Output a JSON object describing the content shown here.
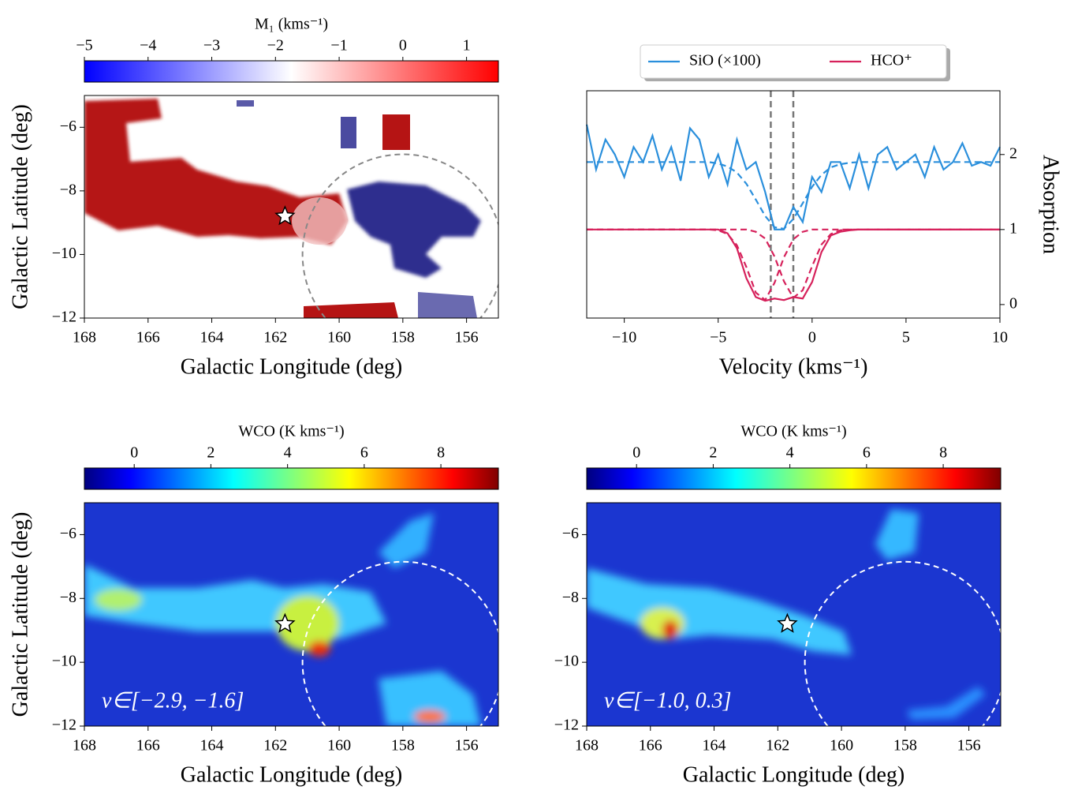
{
  "chart_data": [
    {
      "type": "map",
      "colormap": "bwr",
      "colorbar_label": "M₁ (kms⁻¹)",
      "colorbar_lim": [
        -5,
        1.5
      ],
      "colorbar_ticks": [
        {
          "value": -5,
          "label": "−5"
        },
        {
          "value": -4,
          "label": "−4"
        },
        {
          "value": -3,
          "label": "−3"
        },
        {
          "value": -2,
          "label": "−2"
        },
        {
          "value": -1,
          "label": "−1"
        },
        0,
        1
      ],
      "xlabel": "Galactic Longitude (deg)",
      "ylabel": "Galactic Latitude (deg)",
      "xlim": [
        168,
        155
      ],
      "ylim": [
        -12,
        -5
      ],
      "xticks": [
        168,
        166,
        164,
        162,
        160,
        158,
        156
      ],
      "yticks": [
        {
          "value": -6,
          "label": "−6"
        },
        {
          "value": -8,
          "label": "−8"
        },
        {
          "value": -10,
          "label": "−10"
        },
        {
          "value": -12,
          "label": "−12"
        }
      ],
      "star": {
        "lon": 161.7,
        "lat": -8.8
      },
      "circle": {
        "center": [
          158,
          -10
        ],
        "radius": 3.15,
        "color": "#888888"
      }
    },
    {
      "type": "line",
      "xlabel": "Velocity (kms⁻¹)",
      "ylabel": "Absorption",
      "legend": "upper center",
      "xlim": [
        -12,
        10
      ],
      "ylim": [
        -0.18,
        2.85
      ],
      "xticks": [
        {
          "value": -10,
          "label": "−10"
        },
        {
          "value": -5,
          "label": "−5"
        },
        0,
        5,
        10
      ],
      "yticks": [
        0,
        1,
        2
      ],
      "vlines": [
        -2.2,
        -1.0
      ],
      "x": [
        -12,
        -11.5,
        -11,
        -10.5,
        -10,
        -9.5,
        -9,
        -8.5,
        -8,
        -7.5,
        -7,
        -6.5,
        -6,
        -5.5,
        -5,
        -4.5,
        -4,
        -3.5,
        -3,
        -2.5,
        -2,
        -1.5,
        -1,
        -0.5,
        0,
        0.5,
        1,
        1.5,
        2,
        2.5,
        3,
        3.5,
        4,
        4.5,
        5,
        5.5,
        6,
        6.5,
        7,
        7.5,
        8,
        8.5,
        9,
        9.5,
        10
      ],
      "series": [
        {
          "name": "SiO (×100)",
          "color": "#2a8fdc",
          "values": [
            2.4,
            1.8,
            2.2,
            2.0,
            1.7,
            2.1,
            1.9,
            2.25,
            1.8,
            2.1,
            1.65,
            2.35,
            2.2,
            1.7,
            2.0,
            1.6,
            2.2,
            1.8,
            1.9,
            1.5,
            1.0,
            1.0,
            1.3,
            1.1,
            1.7,
            1.5,
            1.9,
            1.9,
            1.55,
            2.0,
            1.55,
            2.0,
            2.1,
            1.8,
            1.9,
            2.0,
            1.7,
            2.1,
            1.8,
            1.9,
            2.15,
            1.85,
            1.9,
            1.85,
            2.1
          ]
        },
        {
          "color": "#2a8fdc",
          "dashed": true,
          "values": [
            1.9,
            1.9,
            1.9,
            1.9,
            1.9,
            1.9,
            1.9,
            1.9,
            1.9,
            1.9,
            1.9,
            1.9,
            1.9,
            1.9,
            1.88,
            1.84,
            1.76,
            1.61,
            1.4,
            1.18,
            1.03,
            1.01,
            1.14,
            1.35,
            1.57,
            1.73,
            1.83,
            1.87,
            1.89,
            1.9,
            1.9,
            1.9,
            1.9,
            1.9,
            1.9,
            1.9,
            1.9,
            1.9,
            1.9,
            1.9,
            1.9,
            1.9,
            1.9,
            1.9,
            1.9
          ]
        },
        {
          "name": "HCO⁺",
          "color": "#d6215b",
          "values": [
            1,
            1,
            1,
            1,
            1,
            1,
            1,
            1,
            1,
            1,
            1,
            1,
            1,
            1,
            1,
            0.95,
            0.75,
            0.35,
            0.1,
            0.05,
            0.08,
            0.06,
            0.1,
            0.08,
            0.3,
            0.7,
            0.92,
            0.97,
            0.99,
            1,
            1,
            1,
            1,
            1,
            1,
            1,
            1,
            1,
            1,
            1,
            1,
            1,
            1,
            1,
            1
          ]
        },
        {
          "color": "#d6215b",
          "dashed": true,
          "values": [
            1,
            1,
            1,
            1,
            1,
            1,
            1,
            1,
            1,
            1,
            1,
            1,
            1,
            1,
            0.99,
            0.94,
            0.79,
            0.5,
            0.16,
            0.06,
            0.29,
            0.63,
            0.87,
            0.97,
            1,
            1,
            1,
            1,
            1,
            1,
            1,
            1,
            1,
            1,
            1,
            1,
            1,
            1,
            1,
            1,
            1,
            1,
            1,
            1,
            1
          ]
        },
        {
          "color": "#d6215b",
          "dashed": true,
          "values": [
            1,
            1,
            1,
            1,
            1,
            1,
            1,
            1,
            1,
            1,
            1,
            1,
            1,
            1,
            1,
            1,
            1,
            1,
            0.97,
            0.88,
            0.64,
            0.31,
            0.09,
            0.19,
            0.51,
            0.8,
            0.94,
            0.99,
            1,
            1,
            1,
            1,
            1,
            1,
            1,
            1,
            1,
            1,
            1,
            1,
            1,
            1,
            1,
            1,
            1
          ]
        }
      ]
    },
    {
      "type": "map",
      "colormap": "jet",
      "colorbar_label": "WCO (K kms⁻¹)",
      "colorbar_lim": [
        -1.3,
        9.5
      ],
      "colorbar_ticks": [
        0,
        2,
        4,
        6,
        8
      ],
      "xlabel": "Galactic Longitude (deg)",
      "ylabel": "Galactic Latitude (deg)",
      "xlim": [
        168,
        155
      ],
      "ylim": [
        -12,
        -5
      ],
      "xticks": [
        168,
        166,
        164,
        162,
        160,
        158,
        156
      ],
      "yticks": [
        {
          "value": -6,
          "label": "−6"
        },
        {
          "value": -8,
          "label": "−8"
        },
        {
          "value": -10,
          "label": "−10"
        },
        {
          "value": -12,
          "label": "−12"
        }
      ],
      "annotation": "v∈[−2.9, −1.6]",
      "star": {
        "lon": 161.7,
        "lat": -8.8
      },
      "circle": {
        "center": [
          158,
          -10
        ],
        "radius": 3.15,
        "color": "#ffffff"
      }
    },
    {
      "type": "map",
      "colormap": "jet",
      "colorbar_label": "WCO (K kms⁻¹)",
      "colorbar_lim": [
        -1.3,
        9.5
      ],
      "colorbar_ticks": [
        0,
        2,
        4,
        6,
        8
      ],
      "xlabel": "Galactic Longitude (deg)",
      "xlim": [
        168,
        155
      ],
      "ylim": [
        -12,
        -5
      ],
      "xticks": [
        168,
        166,
        164,
        162,
        160,
        158,
        156
      ],
      "yticks": [
        {
          "value": -6,
          "label": "−6"
        },
        {
          "value": -8,
          "label": "−8"
        },
        {
          "value": -10,
          "label": "−10"
        },
        {
          "value": -12,
          "label": "−12"
        }
      ],
      "annotation": "v∈[−1.0, 0.3]",
      "star": {
        "lon": 161.7,
        "lat": -8.8
      },
      "circle": {
        "center": [
          158,
          -10
        ],
        "radius": 3.15,
        "color": "#ffffff"
      }
    }
  ]
}
